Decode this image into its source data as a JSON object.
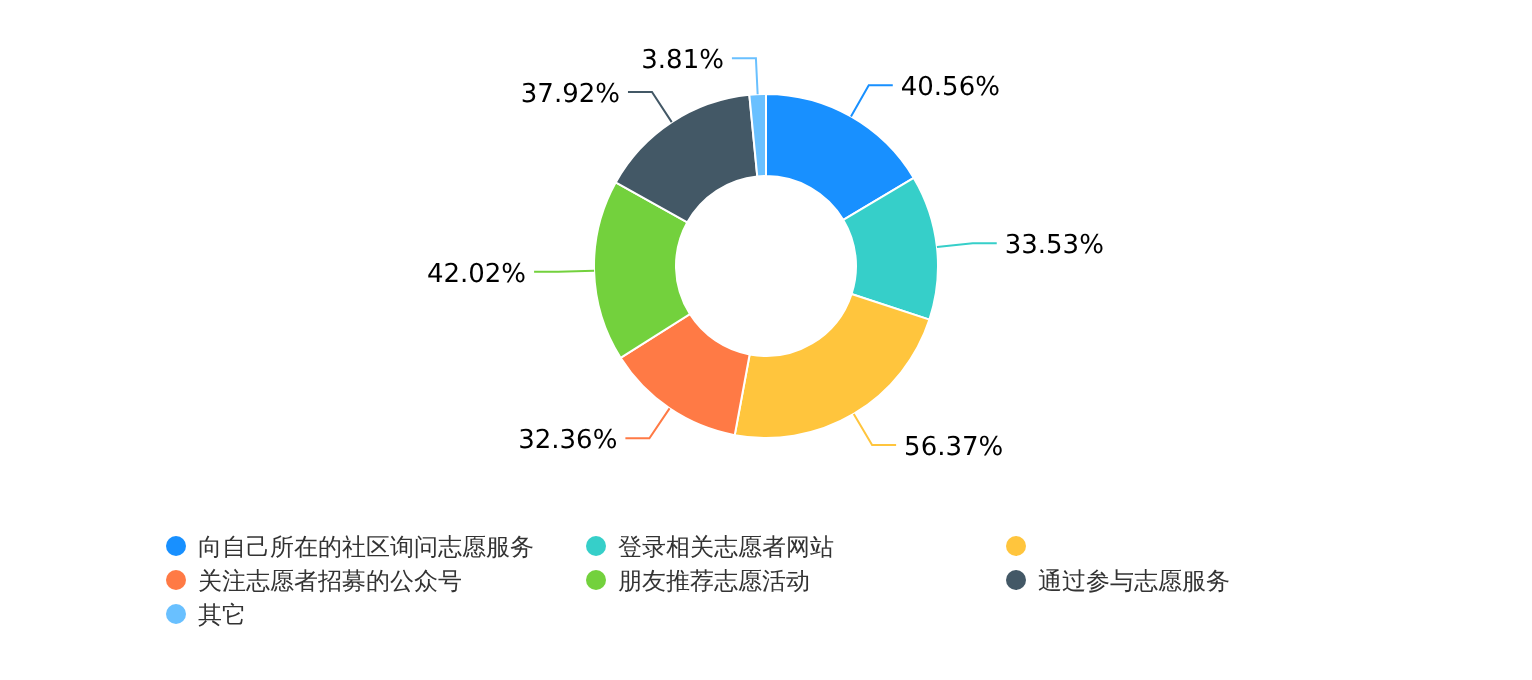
{
  "chart_data": {
    "type": "donut",
    "categories": [
      "向自己所在的社区询问志愿服务",
      "登录相关志愿者网站",
      null,
      "关注志愿者招募的公众号",
      "朋友推荐志愿活动",
      "通过参与志愿服务",
      "其它"
    ],
    "values": [
      40.56,
      33.53,
      56.37,
      32.36,
      42.02,
      37.92,
      3.81
    ],
    "value_labels": [
      "40.56%",
      "33.53%",
      "56.37%",
      "32.36%",
      "42.02%",
      "37.92%",
      "3.81%"
    ],
    "colors": [
      "#1890ff",
      "#36cfc9",
      "#ffc53d",
      "#ff7a45",
      "#73d13d",
      "#435866",
      "#69c0ff"
    ],
    "legend": "bottom"
  }
}
